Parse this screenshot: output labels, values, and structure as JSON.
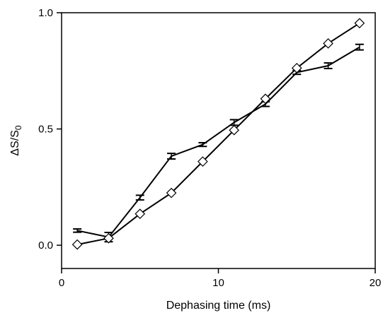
{
  "chart_data": {
    "type": "line",
    "xlabel": "Dephasing time (ms)",
    "ylabel": {
      "prefix": "ΔS/S",
      "subscript": "0"
    },
    "xlim": [
      0,
      20
    ],
    "ylim": [
      -0.1,
      1.0
    ],
    "xticks": [
      0,
      10,
      20
    ],
    "xtick_labels": [
      "0",
      "10",
      "20"
    ],
    "yticks": [
      0.0,
      0.5,
      1.0
    ],
    "ytick_labels": [
      "0.0",
      "0.5",
      "1.0"
    ],
    "grid": false,
    "legend": "none",
    "series": [
      {
        "marker": "bar",
        "x": [
          1,
          3,
          5,
          7,
          9,
          11,
          13,
          15,
          17,
          19
        ],
        "y": [
          0.063,
          0.035,
          0.205,
          0.383,
          0.433,
          0.528,
          0.607,
          0.743,
          0.772,
          0.852
        ],
        "yerr": [
          0.007,
          0.02,
          0.01,
          0.012,
          0.008,
          0.012,
          0.01,
          0.008,
          0.012,
          0.012
        ]
      },
      {
        "marker": "diamond",
        "x": [
          1,
          3,
          5,
          7,
          9,
          11,
          13,
          15,
          17,
          19
        ],
        "y": [
          0.003,
          0.03,
          0.135,
          0.225,
          0.36,
          0.495,
          0.63,
          0.762,
          0.868,
          0.955
        ]
      }
    ]
  }
}
